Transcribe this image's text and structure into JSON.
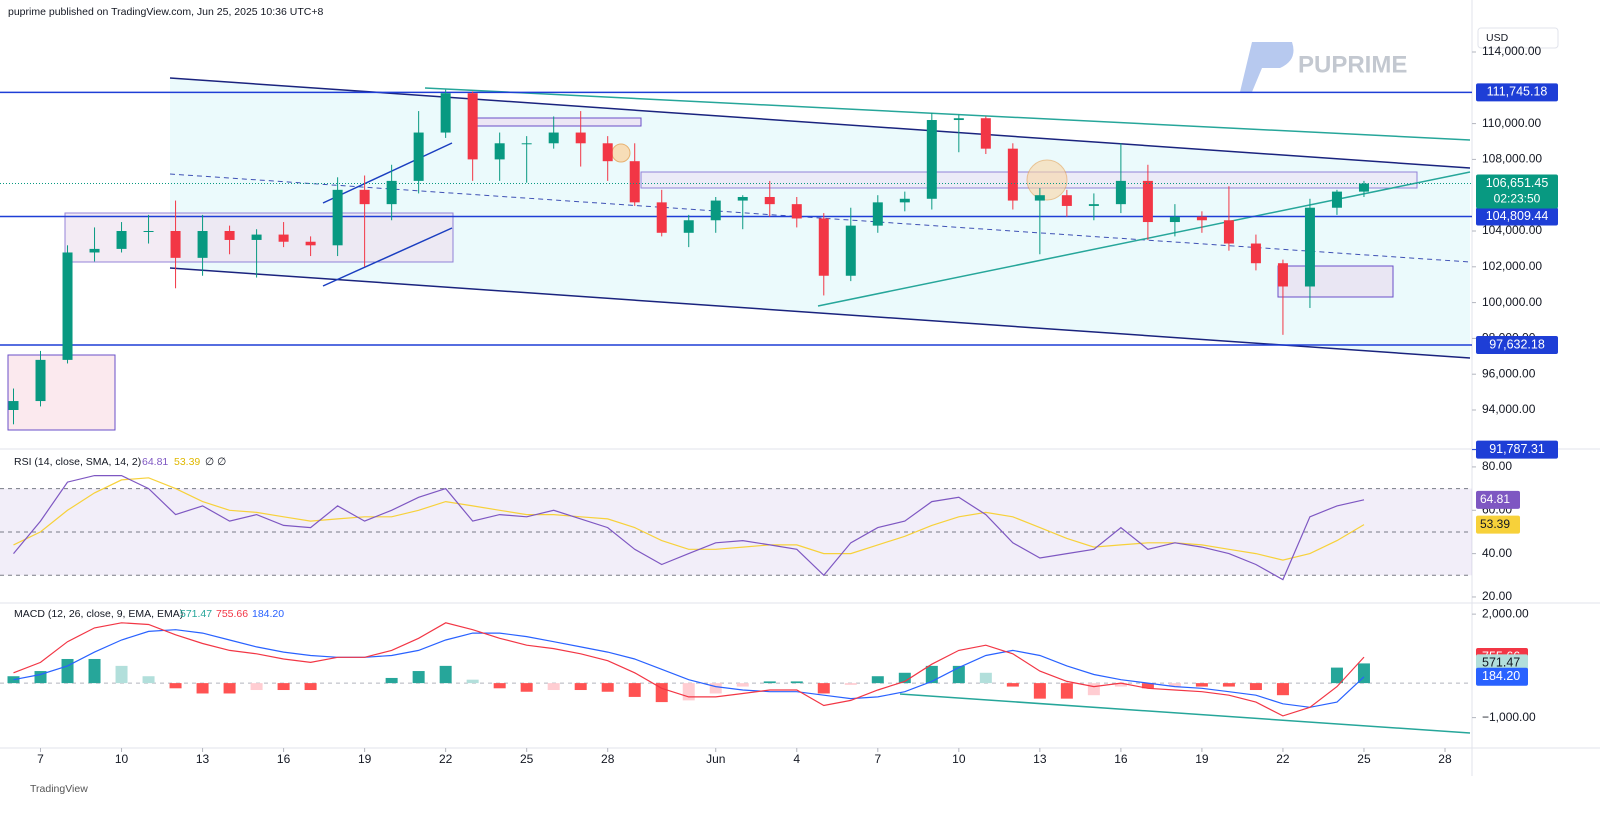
{
  "chart_data": {
    "type": "candlestick",
    "title": "puprime published on TradingView.com, Jun 25, 2025 10:36 UTC+8",
    "currency": "USD",
    "logo": "PUPRIME",
    "footer": "TradingView",
    "up_color": "#089981",
    "down_color": "#f23645",
    "x": [
      6,
      7,
      8,
      9,
      10,
      11,
      12,
      13,
      14,
      15,
      16,
      17,
      18,
      19,
      20,
      21,
      22,
      23,
      24,
      25,
      26,
      27,
      28,
      29,
      30,
      31,
      32,
      33,
      34,
      35,
      36,
      37,
      38,
      39,
      40,
      41,
      42,
      43,
      44,
      45,
      46,
      47,
      48,
      49,
      50,
      51,
      52,
      53,
      54,
      55,
      56
    ],
    "open": [
      94000,
      94500,
      96800,
      102800,
      103000,
      104000,
      104000,
      102500,
      104000,
      103500,
      103800,
      103400,
      103200,
      106300,
      105500,
      106800,
      109500,
      111700,
      108000,
      108900,
      108900,
      109500,
      108900,
      107900,
      105600,
      103900,
      104600,
      105700,
      105900,
      105500,
      104700,
      101500,
      104300,
      105600,
      105800,
      110200,
      110300,
      108600,
      105700,
      106000,
      105400,
      105500,
      106800,
      104500,
      104800,
      104600,
      103300,
      102200,
      100900,
      105300,
      106200
    ],
    "high": [
      95200,
      97300,
      103200,
      104200,
      104500,
      104900,
      105700,
      104900,
      104300,
      104100,
      104500,
      103700,
      107000,
      107100,
      107700,
      110700,
      111900,
      111800,
      109500,
      109300,
      110400,
      110700,
      109300,
      108900,
      106300,
      104900,
      105900,
      106000,
      106800,
      105900,
      105000,
      105300,
      106000,
      106200,
      110600,
      110500,
      110400,
      108900,
      106400,
      106300,
      106100,
      108900,
      107700,
      105500,
      105100,
      106500,
      103800,
      102400,
      105800,
      106300,
      106800
    ],
    "low": [
      93200,
      94200,
      96600,
      102300,
      102800,
      103300,
      100800,
      101500,
      102700,
      101400,
      103100,
      102600,
      102600,
      102000,
      104600,
      106100,
      109200,
      106800,
      106800,
      106700,
      108600,
      107600,
      106800,
      105400,
      103700,
      103100,
      103900,
      104100,
      104800,
      104200,
      100400,
      101200,
      103900,
      105100,
      105200,
      108400,
      108300,
      105200,
      102700,
      104800,
      104600,
      105000,
      103500,
      103700,
      103900,
      102900,
      101800,
      98200,
      99700,
      104900,
      105900
    ],
    "close": [
      94500,
      96800,
      102800,
      103000,
      104000,
      104000,
      102500,
      104000,
      103500,
      103800,
      103400,
      103200,
      106300,
      105500,
      106800,
      109500,
      111700,
      108000,
      108900,
      108900,
      109500,
      108900,
      107900,
      105600,
      103900,
      104600,
      105700,
      105900,
      105500,
      104700,
      101500,
      104300,
      105600,
      105800,
      110200,
      110300,
      108600,
      105700,
      106000,
      105400,
      105500,
      106800,
      104500,
      104800,
      104600,
      103300,
      102200,
      100900,
      105300,
      106200,
      106651.45
    ],
    "xlim": [
      5.5,
      60
    ],
    "xticks": [
      {
        "value": 7,
        "label": "7"
      },
      {
        "value": 10,
        "label": "10"
      },
      {
        "value": 13,
        "label": "13"
      },
      {
        "value": 16,
        "label": "16"
      },
      {
        "value": 19,
        "label": "19"
      },
      {
        "value": 22,
        "label": "22"
      },
      {
        "value": 25,
        "label": "25"
      },
      {
        "value": 28,
        "label": "28"
      },
      {
        "value": 32,
        "label": "Jun"
      },
      {
        "value": 35,
        "label": "4"
      },
      {
        "value": 38,
        "label": "7"
      },
      {
        "value": 41,
        "label": "10"
      },
      {
        "value": 44,
        "label": "13"
      },
      {
        "value": 47,
        "label": "16"
      },
      {
        "value": 50,
        "label": "19"
      },
      {
        "value": 53,
        "label": "22"
      },
      {
        "value": 56,
        "label": "25"
      },
      {
        "value": 59,
        "label": "28"
      }
    ],
    "ylim": [
      91877,
      116905
    ],
    "yticks": [
      {
        "value": 114000,
        "label": "114,000.00"
      },
      {
        "value": 110000,
        "label": "110,000.00"
      },
      {
        "value": 108000,
        "label": "108,000.00"
      },
      {
        "value": 104000,
        "label": "104,000.00"
      },
      {
        "value": 102000,
        "label": "102,000.00"
      },
      {
        "value": 100000,
        "label": "100,000.00"
      },
      {
        "value": 98000,
        "label": "98,000.00"
      },
      {
        "value": 96000,
        "label": "96,000.00"
      },
      {
        "value": 94000,
        "label": "94,000.00"
      }
    ],
    "hlines": [
      {
        "value": 111745.18,
        "label": "111,745.18",
        "color": "#1e3ed6"
      },
      {
        "value": 104809.44,
        "label": "104,809.44",
        "color": "#1e3ed6"
      },
      {
        "value": 97632.18,
        "label": "97,632.18",
        "color": "#1e3ed6"
      }
    ],
    "last_price": {
      "value": 106651.45,
      "label": "106,651.45",
      "countdown": "02:23:50",
      "color": "#089981"
    },
    "price_label": {
      "value": 91787.31,
      "label": "91,787.31",
      "color": "#1e3ed6"
    },
    "rsi": {
      "title": "RSI (14, close, SMA, 14, 2)",
      "extra": "∅ ∅",
      "values": [
        40,
        55,
        73,
        76,
        76,
        70,
        58,
        62,
        55,
        58,
        53,
        52,
        62,
        55,
        60,
        66,
        70,
        55,
        58,
        57,
        60,
        56,
        52,
        42,
        35,
        40,
        45,
        46,
        44,
        42,
        30,
        45,
        52,
        55,
        64,
        66,
        58,
        45,
        38,
        40,
        42,
        52,
        42,
        45,
        43,
        40,
        35,
        28,
        57,
        62,
        64.81
      ],
      "sma": [
        44,
        50,
        60,
        68,
        74,
        75,
        70,
        64,
        60,
        59,
        57,
        55,
        56,
        57,
        57,
        60,
        64,
        62,
        60,
        58,
        58,
        57,
        56,
        52,
        46,
        42,
        42,
        43,
        44,
        44,
        40,
        40,
        44,
        48,
        53,
        57,
        59,
        57,
        52,
        47,
        43,
        44,
        45,
        45,
        44,
        42,
        40,
        37,
        40,
        46,
        53.39
      ],
      "value_label": "64.81",
      "sma_label": "53.39",
      "color": "#7e57c2",
      "sma_color": "#f7d13a",
      "ylim": [
        18.6,
        85.5
      ],
      "yticks": [
        {
          "value": 80,
          "label": "80.00"
        },
        {
          "value": 60,
          "label": "60.00"
        },
        {
          "value": 40,
          "label": "40.00"
        },
        {
          "value": 20,
          "label": "20.00"
        }
      ],
      "bands": [
        70,
        50,
        30
      ]
    },
    "macd": {
      "title": "MACD (12, 26, close, 9, EMA, EMA)",
      "macd": [
        300,
        600,
        1200,
        1600,
        1750,
        1700,
        1400,
        1150,
        950,
        850,
        700,
        600,
        750,
        750,
        950,
        1300,
        1750,
        1550,
        1300,
        1100,
        1000,
        850,
        650,
        300,
        -150,
        -400,
        -400,
        -300,
        -200,
        -200,
        -650,
        -500,
        -200,
        50,
        550,
        950,
        1100,
        850,
        350,
        50,
        -100,
        0,
        -150,
        -200,
        -250,
        -350,
        -550,
        -950,
        -700,
        -100,
        755.66
      ],
      "signal": [
        100,
        250,
        500,
        900,
        1250,
        1500,
        1550,
        1450,
        1250,
        1050,
        900,
        800,
        750,
        750,
        800,
        950,
        1250,
        1450,
        1450,
        1350,
        1200,
        1050,
        900,
        700,
        400,
        100,
        -100,
        -200,
        -250,
        -250,
        -350,
        -450,
        -400,
        -250,
        50,
        450,
        800,
        950,
        800,
        500,
        250,
        100,
        0,
        -100,
        -150,
        -250,
        -350,
        -600,
        -700,
        -550,
        184.2
      ],
      "histogram": [
        200,
        350,
        700,
        700,
        500,
        200,
        -150,
        -300,
        -300,
        -200,
        -200,
        -200,
        0,
        0,
        150,
        350,
        500,
        100,
        -150,
        -250,
        -200,
        -200,
        -250,
        -400,
        -550,
        -500,
        -300,
        -100,
        50,
        50,
        -300,
        -50,
        200,
        300,
        500,
        500,
        300,
        -100,
        -450,
        -450,
        -350,
        -100,
        -150,
        -100,
        -100,
        -100,
        -200,
        -350,
        0,
        450,
        571.47
      ],
      "macd_label": "755.66",
      "signal_label": "184.20",
      "histogram_label": "571.47",
      "macd_color": "#f23645",
      "signal_color": "#2962ff",
      "hist_color": "#26a69a",
      "ylim": [
        -1794,
        2265
      ],
      "yticks": [
        {
          "value": 2000,
          "label": "2,000.00"
        },
        {
          "value": -1000,
          "label": "−1,000.00"
        }
      ]
    }
  }
}
